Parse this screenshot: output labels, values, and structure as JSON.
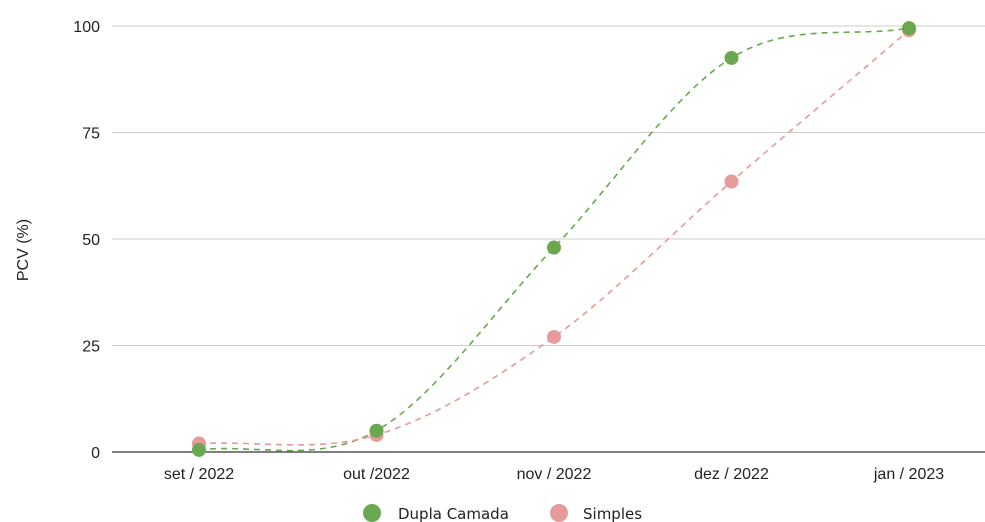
{
  "chart_data": {
    "type": "scatter",
    "title": "",
    "xlabel": "",
    "ylabel": "PCV (%)",
    "categories": [
      "set / 2022",
      "out /2022",
      "nov / 2022",
      "dez / 2022",
      "jan / 2023"
    ],
    "ylim": [
      0,
      100
    ],
    "yticks": [
      0,
      25,
      50,
      75,
      100
    ],
    "grid": true,
    "legend_position": "bottom",
    "trendline": "dashed smooth curve per series",
    "series": [
      {
        "name": "Dupla Camada",
        "color": "#6aa84f",
        "values": [
          0.5,
          5,
          48,
          92.5,
          99.5
        ]
      },
      {
        "name": "Simples",
        "color": "#e69a9a",
        "values": [
          2,
          4,
          27,
          63.5,
          99
        ]
      }
    ]
  }
}
